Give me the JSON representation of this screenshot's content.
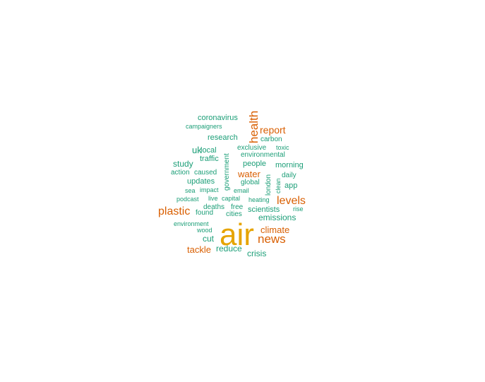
{
  "colors": {
    "gold": "#e6a400",
    "orange": "#d95f02",
    "teal": "#1b9e77",
    "background": "#ffffff"
  },
  "word_cloud": {
    "words": [
      {
        "text": "air",
        "weight": 1.0,
        "color": "gold"
      },
      {
        "text": "news",
        "weight": 0.45,
        "color": "orange"
      },
      {
        "text": "health",
        "weight": 0.4,
        "color": "orange",
        "vertical": true
      },
      {
        "text": "levels",
        "weight": 0.4,
        "color": "orange"
      },
      {
        "text": "plastic",
        "weight": 0.4,
        "color": "orange"
      },
      {
        "text": "report",
        "weight": 0.35,
        "color": "orange"
      },
      {
        "text": "water",
        "weight": 0.3,
        "color": "orange"
      },
      {
        "text": "climate",
        "weight": 0.3,
        "color": "orange"
      },
      {
        "text": "tackle",
        "weight": 0.3,
        "color": "orange"
      },
      {
        "text": "emissions",
        "weight": 0.25,
        "color": "teal"
      },
      {
        "text": "reduce",
        "weight": 0.25,
        "color": "teal"
      },
      {
        "text": "crisis",
        "weight": 0.25,
        "color": "teal"
      },
      {
        "text": "cut",
        "weight": 0.25,
        "color": "teal"
      },
      {
        "text": "study",
        "weight": 0.25,
        "color": "teal"
      },
      {
        "text": "uk",
        "weight": 0.25,
        "color": "teal"
      },
      {
        "text": "updates",
        "weight": 0.2,
        "color": "teal"
      },
      {
        "text": "app",
        "weight": 0.2,
        "color": "teal"
      },
      {
        "text": "morning",
        "weight": 0.2,
        "color": "teal"
      },
      {
        "text": "people",
        "weight": 0.2,
        "color": "teal"
      },
      {
        "text": "research",
        "weight": 0.2,
        "color": "teal"
      },
      {
        "text": "coronavirus",
        "weight": 0.2,
        "color": "teal"
      },
      {
        "text": "scientists",
        "weight": 0.2,
        "color": "teal"
      },
      {
        "text": "carbon",
        "weight": 0.18,
        "color": "teal"
      },
      {
        "text": "environmental",
        "weight": 0.18,
        "color": "teal"
      },
      {
        "text": "exclusive",
        "weight": 0.18,
        "color": "teal"
      },
      {
        "text": "traffic",
        "weight": 0.18,
        "color": "teal"
      },
      {
        "text": "local",
        "weight": 0.18,
        "color": "teal"
      },
      {
        "text": "global",
        "weight": 0.18,
        "color": "teal"
      },
      {
        "text": "government",
        "weight": 0.18,
        "color": "teal",
        "vertical": true
      },
      {
        "text": "london",
        "weight": 0.18,
        "color": "teal",
        "vertical": true
      },
      {
        "text": "clean",
        "weight": 0.15,
        "color": "teal",
        "vertical": true
      },
      {
        "text": "daily",
        "weight": 0.15,
        "color": "teal"
      },
      {
        "text": "caused",
        "weight": 0.15,
        "color": "teal"
      },
      {
        "text": "action",
        "weight": 0.15,
        "color": "teal"
      },
      {
        "text": "found",
        "weight": 0.15,
        "color": "teal"
      },
      {
        "text": "cities",
        "weight": 0.15,
        "color": "teal"
      },
      {
        "text": "deaths",
        "weight": 0.15,
        "color": "teal"
      },
      {
        "text": "free",
        "weight": 0.15,
        "color": "teal"
      },
      {
        "text": "toxic",
        "weight": 0.13,
        "color": "teal"
      },
      {
        "text": "rise",
        "weight": 0.12,
        "color": "teal"
      },
      {
        "text": "heating",
        "weight": 0.12,
        "color": "teal"
      },
      {
        "text": "email",
        "weight": 0.12,
        "color": "teal"
      },
      {
        "text": "impact",
        "weight": 0.12,
        "color": "teal"
      },
      {
        "text": "sea",
        "weight": 0.12,
        "color": "teal"
      },
      {
        "text": "live",
        "weight": 0.12,
        "color": "teal"
      },
      {
        "text": "capital",
        "weight": 0.12,
        "color": "teal"
      },
      {
        "text": "podcast",
        "weight": 0.12,
        "color": "teal"
      },
      {
        "text": "campaigners",
        "weight": 0.12,
        "color": "teal"
      },
      {
        "text": "environment",
        "weight": 0.12,
        "color": "teal"
      },
      {
        "text": "wood",
        "weight": 0.12,
        "color": "teal"
      }
    ]
  }
}
